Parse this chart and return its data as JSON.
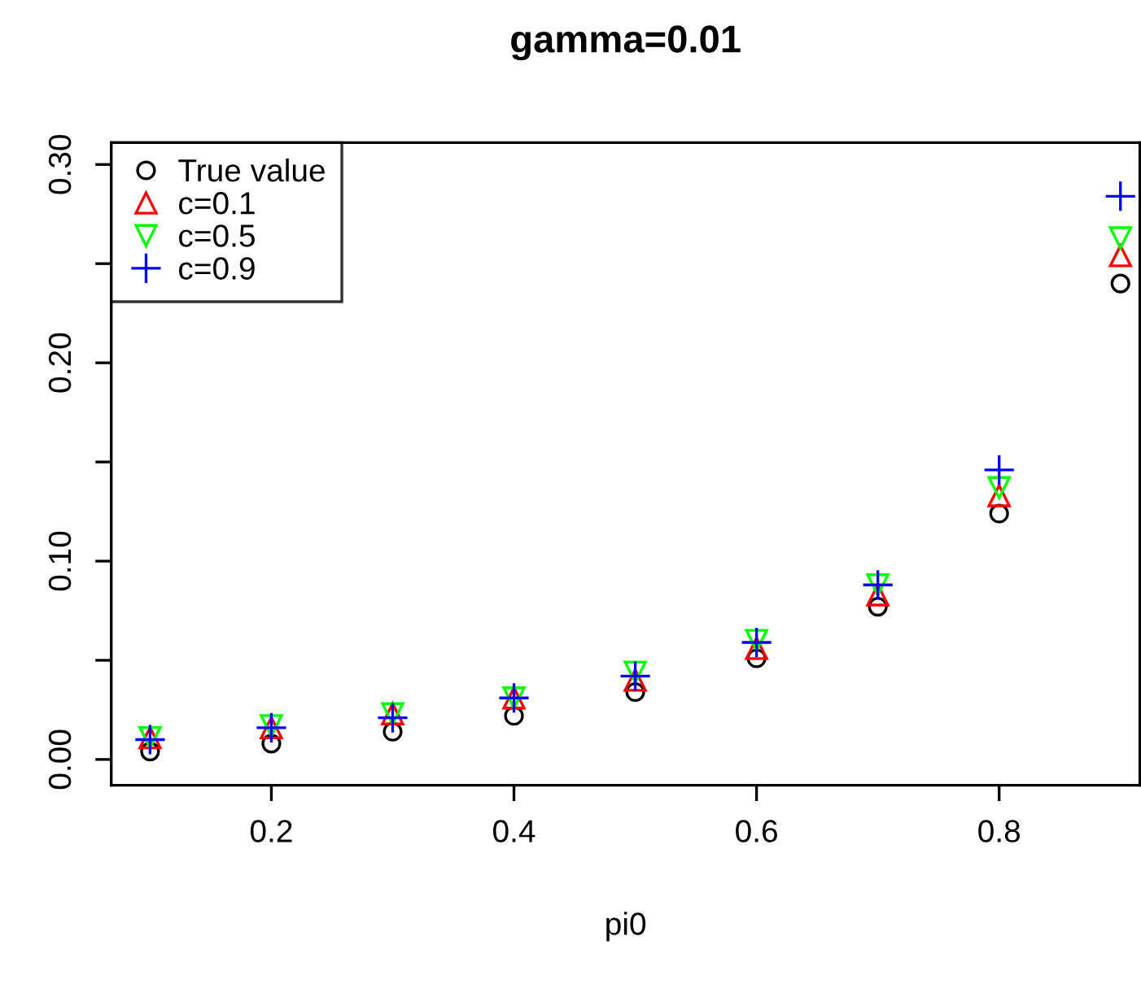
{
  "chart_data": {
    "type": "scatter",
    "title": "gamma=0.01",
    "xlabel": "pi0",
    "x": [
      0.1,
      0.2,
      0.3,
      0.4,
      0.5,
      0.6,
      0.7,
      0.8,
      0.9
    ],
    "series": [
      {
        "name": "True value",
        "color": "#000000",
        "marker": "circle",
        "values": [
          0.004,
          0.008,
          0.014,
          0.022,
          0.034,
          0.051,
          0.077,
          0.124,
          0.24
        ]
      },
      {
        "name": "c=0.1",
        "color": "#ff0000",
        "marker": "triangle",
        "values": [
          0.011,
          0.016,
          0.023,
          0.031,
          0.04,
          0.056,
          0.083,
          0.133,
          0.254
        ]
      },
      {
        "name": "c=0.5",
        "color": "#00ff00",
        "marker": "triangle-down",
        "values": [
          0.011,
          0.017,
          0.023,
          0.031,
          0.044,
          0.06,
          0.088,
          0.137,
          0.263
        ]
      },
      {
        "name": "c=0.9",
        "color": "#0000ff",
        "marker": "cross",
        "values": [
          0.01,
          0.016,
          0.021,
          0.031,
          0.042,
          0.059,
          0.088,
          0.146,
          0.284
        ]
      }
    ],
    "xlim": [
      0.068,
      0.916
    ],
    "ylim": [
      -0.013,
      0.311
    ],
    "xticks": [
      0.2,
      0.4,
      0.6,
      0.8
    ],
    "yticks": [
      {
        "value": 0.0,
        "label": "0.00"
      },
      {
        "value": 0.05,
        "label": null
      },
      {
        "value": 0.1,
        "label": "0.10"
      },
      {
        "value": 0.15,
        "label": null
      },
      {
        "value": 0.2,
        "label": "0.20"
      },
      {
        "value": 0.25,
        "label": null
      },
      {
        "value": 0.3,
        "label": "0.30"
      }
    ],
    "grid": false,
    "legend": "top left"
  }
}
